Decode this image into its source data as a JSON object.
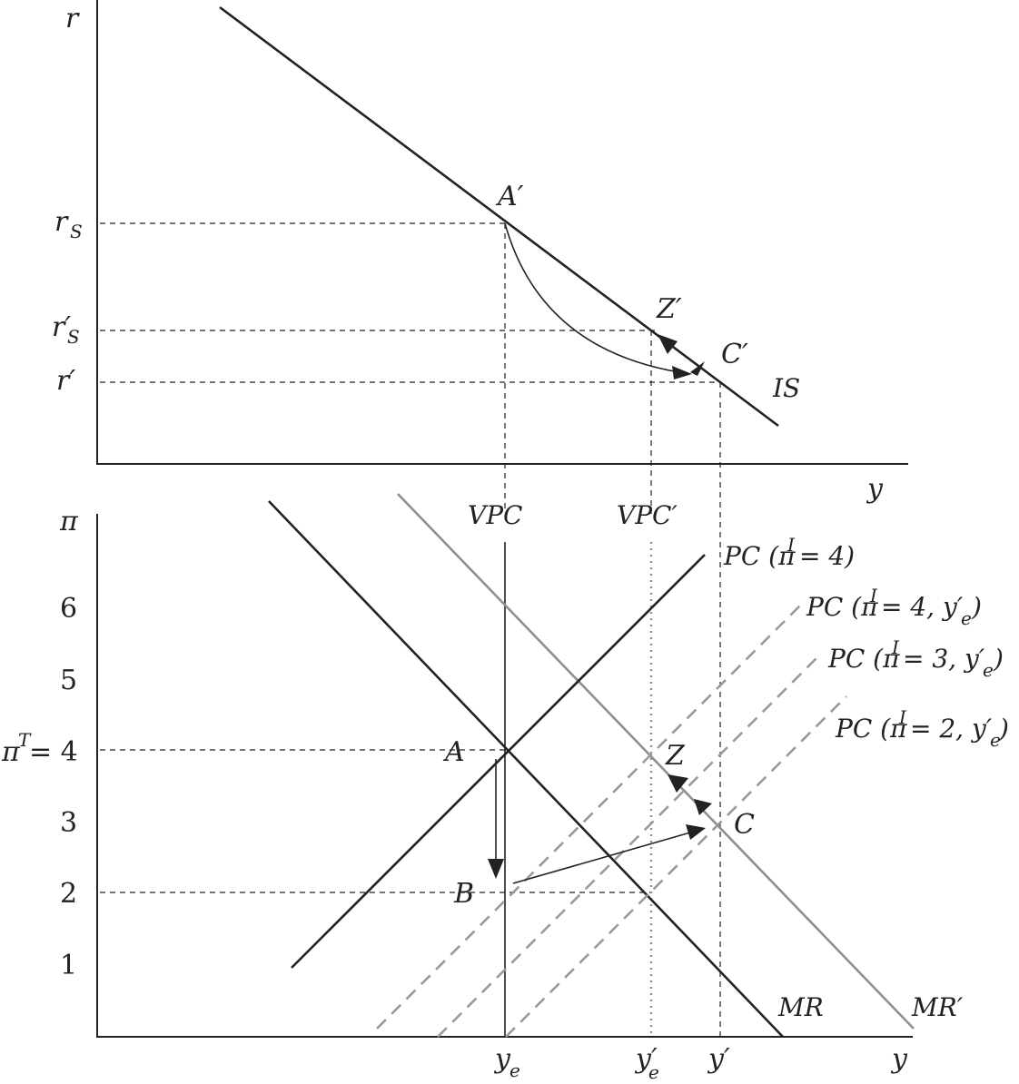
{
  "top_panel": {
    "axis_y": "r",
    "axis_x": "y",
    "ticks": [
      {
        "main": "r",
        "sub": "S"
      },
      {
        "main": "r′",
        "sub": "S"
      },
      {
        "main": "r′",
        "sub": ""
      }
    ],
    "curve_label": "IS",
    "points": [
      "A′",
      "Z′",
      "C′"
    ]
  },
  "bottom_panel": {
    "axis_y": "π",
    "axis_x": "y",
    "y_ticks": [
      "6",
      "5",
      "3",
      "2",
      "1"
    ],
    "target_tick": {
      "pre": "π",
      "sup": "T",
      "post": " = 4"
    },
    "x_ticks": [
      {
        "main": "y",
        "sub": "e"
      },
      {
        "main": "y′",
        "sub": "e"
      },
      {
        "main": "y′",
        "sub": ""
      }
    ],
    "vertical_labels": [
      "VPC",
      "VPC′"
    ],
    "pc_labels": [
      {
        "a": "PC (π",
        "sup": "I",
        "b": " = 4)",
        "sub": "",
        "c": ""
      },
      {
        "a": "PC (π",
        "sup": "I",
        "b": " = 4, y′",
        "sub": "e",
        "c": ")"
      },
      {
        "a": "PC (π",
        "sup": "I",
        "b": " = 3, y′",
        "sub": "e",
        "c": ")"
      },
      {
        "a": "PC (π",
        "sup": "I",
        "b": " = 2, y′",
        "sub": "e",
        "c": ")"
      }
    ],
    "mr_labels": [
      "MR",
      "MR′"
    ],
    "points": [
      "A",
      "Z",
      "B",
      "C"
    ]
  },
  "colors": {
    "black_lines": "#222222",
    "grey_lines": "#8f8f8f"
  }
}
